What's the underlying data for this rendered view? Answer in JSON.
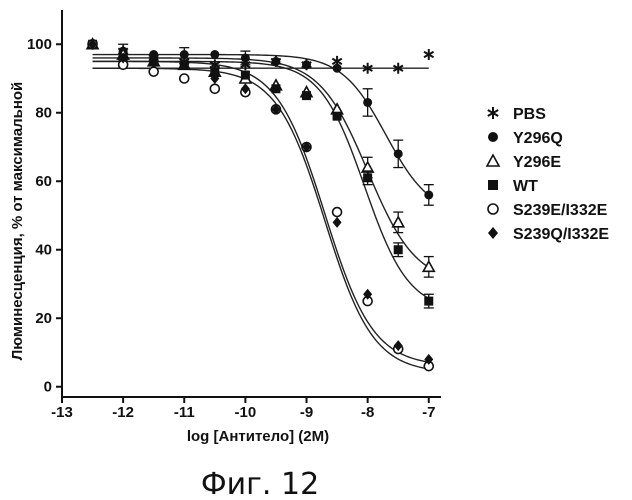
{
  "chart_data": {
    "type": "scatter",
    "title": "",
    "xlabel": "log [Антитело] (2M)",
    "ylabel": "Люминесценция, % от максимальной",
    "xlim": [
      -13,
      -6.8
    ],
    "ylim": [
      -3,
      110
    ],
    "xticks": [
      -13,
      -12,
      -11,
      -10,
      -9,
      -8,
      -7
    ],
    "yticks": [
      0,
      20,
      40,
      60,
      80,
      100
    ],
    "caption": "Фиг. 12",
    "legend_position": "right",
    "series": [
      {
        "name": "PBS",
        "marker": "asterisk",
        "x": [
          -12.5,
          -12,
          -11.5,
          -11,
          -10.5,
          -10,
          -9.5,
          -9,
          -8.5,
          -8,
          -7.5,
          -7
        ],
        "y": [
          100,
          98,
          96,
          95,
          94,
          94,
          95,
          94,
          95,
          93,
          93,
          97
        ],
        "fit": {
          "bottom": 93,
          "top": 93,
          "logec50": -9,
          "hill": 1
        }
      },
      {
        "name": "Y296Q",
        "marker": "filled-circle",
        "x": [
          -12.5,
          -12,
          -11.5,
          -11,
          -10.5,
          -10,
          -9.5,
          -9,
          -8.5,
          -8,
          -7.5,
          -7
        ],
        "y": [
          100,
          98,
          97,
          97,
          97,
          96,
          95,
          94,
          93,
          83,
          68,
          56
        ],
        "err": [
          0,
          2,
          0,
          2,
          0,
          2,
          0,
          0,
          0,
          4,
          4,
          3
        ],
        "fit": {
          "bottom": 50,
          "top": 97,
          "logec50": -7.7,
          "hill": 1.2
        }
      },
      {
        "name": "Y296E",
        "marker": "open-triangle",
        "x": [
          -12.5,
          -12,
          -11.5,
          -11,
          -10.5,
          -10,
          -9.5,
          -9,
          -8.5,
          -8,
          -7.5,
          -7
        ],
        "y": [
          100,
          97,
          95,
          94,
          92,
          90,
          88,
          86,
          81,
          64,
          48,
          35
        ],
        "err": [
          0,
          0,
          0,
          0,
          0,
          0,
          0,
          0,
          0,
          3,
          3,
          3
        ],
        "fit": {
          "bottom": 30,
          "top": 96,
          "logec50": -8.0,
          "hill": 1.1
        }
      },
      {
        "name": "WT",
        "marker": "filled-square",
        "x": [
          -12.5,
          -12,
          -11.5,
          -11,
          -10.5,
          -10,
          -9.5,
          -9,
          -8.5,
          -8,
          -7.5,
          -7
        ],
        "y": [
          100,
          96,
          95,
          94,
          92,
          91,
          87,
          85,
          79,
          61,
          40,
          25
        ],
        "err": [
          0,
          0,
          0,
          0,
          0,
          0,
          0,
          0,
          0,
          2,
          2,
          2
        ],
        "fit": {
          "bottom": 22,
          "top": 95,
          "logec50": -8.05,
          "hill": 1.2
        }
      },
      {
        "name": "S239E/I332E",
        "marker": "open-circle",
        "x": [
          -12.5,
          -12,
          -11.5,
          -11,
          -10.5,
          -10,
          -9.5,
          -9,
          -8.5,
          -8,
          -7.5,
          -7
        ],
        "y": [
          100,
          94,
          92,
          90,
          87,
          86,
          81,
          70,
          51,
          25,
          11,
          6
        ],
        "err": [
          0,
          0,
          0,
          0,
          0,
          0,
          0,
          0,
          0,
          0,
          0,
          0
        ],
        "fit": {
          "bottom": 4,
          "top": 93,
          "logec50": -8.7,
          "hill": 1.1
        }
      },
      {
        "name": "S239Q/I332E",
        "marker": "filled-diamond",
        "x": [
          -12.5,
          -12,
          -11.5,
          -11,
          -10.5,
          -10,
          -9.5,
          -9,
          -8.5,
          -8,
          -7.5,
          -7
        ],
        "y": [
          100,
          96,
          95,
          94,
          90,
          87,
          81,
          70,
          48,
          27,
          12,
          8
        ],
        "err": [
          0,
          0,
          0,
          0,
          0,
          0,
          0,
          0,
          0,
          0,
          0,
          0
        ],
        "fit": {
          "bottom": 6,
          "top": 95,
          "logec50": -8.7,
          "hill": 1.1
        }
      }
    ]
  }
}
